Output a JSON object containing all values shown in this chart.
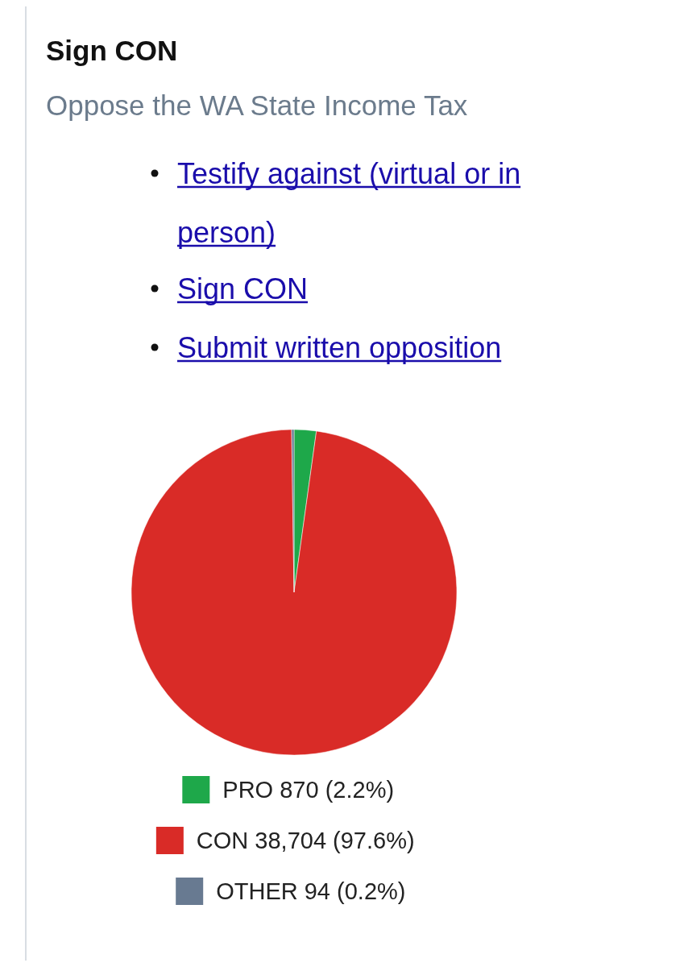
{
  "chart_data": {
    "type": "pie",
    "title": "Sign CON",
    "subtitle": "Oppose the WA State Income Tax",
    "annotations": [
      "Testify against (virtual or in person)",
      "Sign CON",
      "Submit written opposition"
    ],
    "categories": [
      "PRO",
      "CON",
      "OTHER"
    ],
    "values": [
      870,
      38704,
      94
    ],
    "value_labels": [
      "870 (2.2%)",
      "38,704 (97.6%)",
      "94 (0.2%)"
    ],
    "colors": [
      "#1ea84a",
      "#d92b27",
      "#687a91"
    ],
    "legend": "bottom"
  }
}
